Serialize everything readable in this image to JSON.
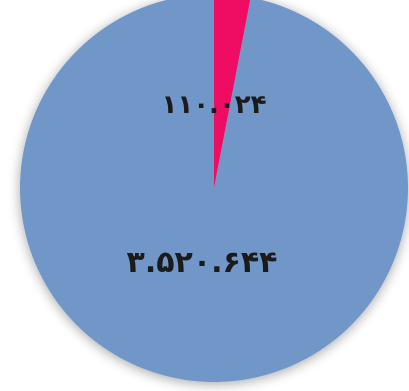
{
  "chart_data": {
    "type": "pie",
    "categories": [
      "",
      ""
    ],
    "values": [
      110024,
      3520644
    ],
    "data_labels": [
      "۱۱۰.۰۲۴",
      "۳.۵۲۰.۶۴۴"
    ],
    "colors": [
      "#ee0d62",
      "#6f97c8"
    ],
    "title": "",
    "legend": "none"
  }
}
